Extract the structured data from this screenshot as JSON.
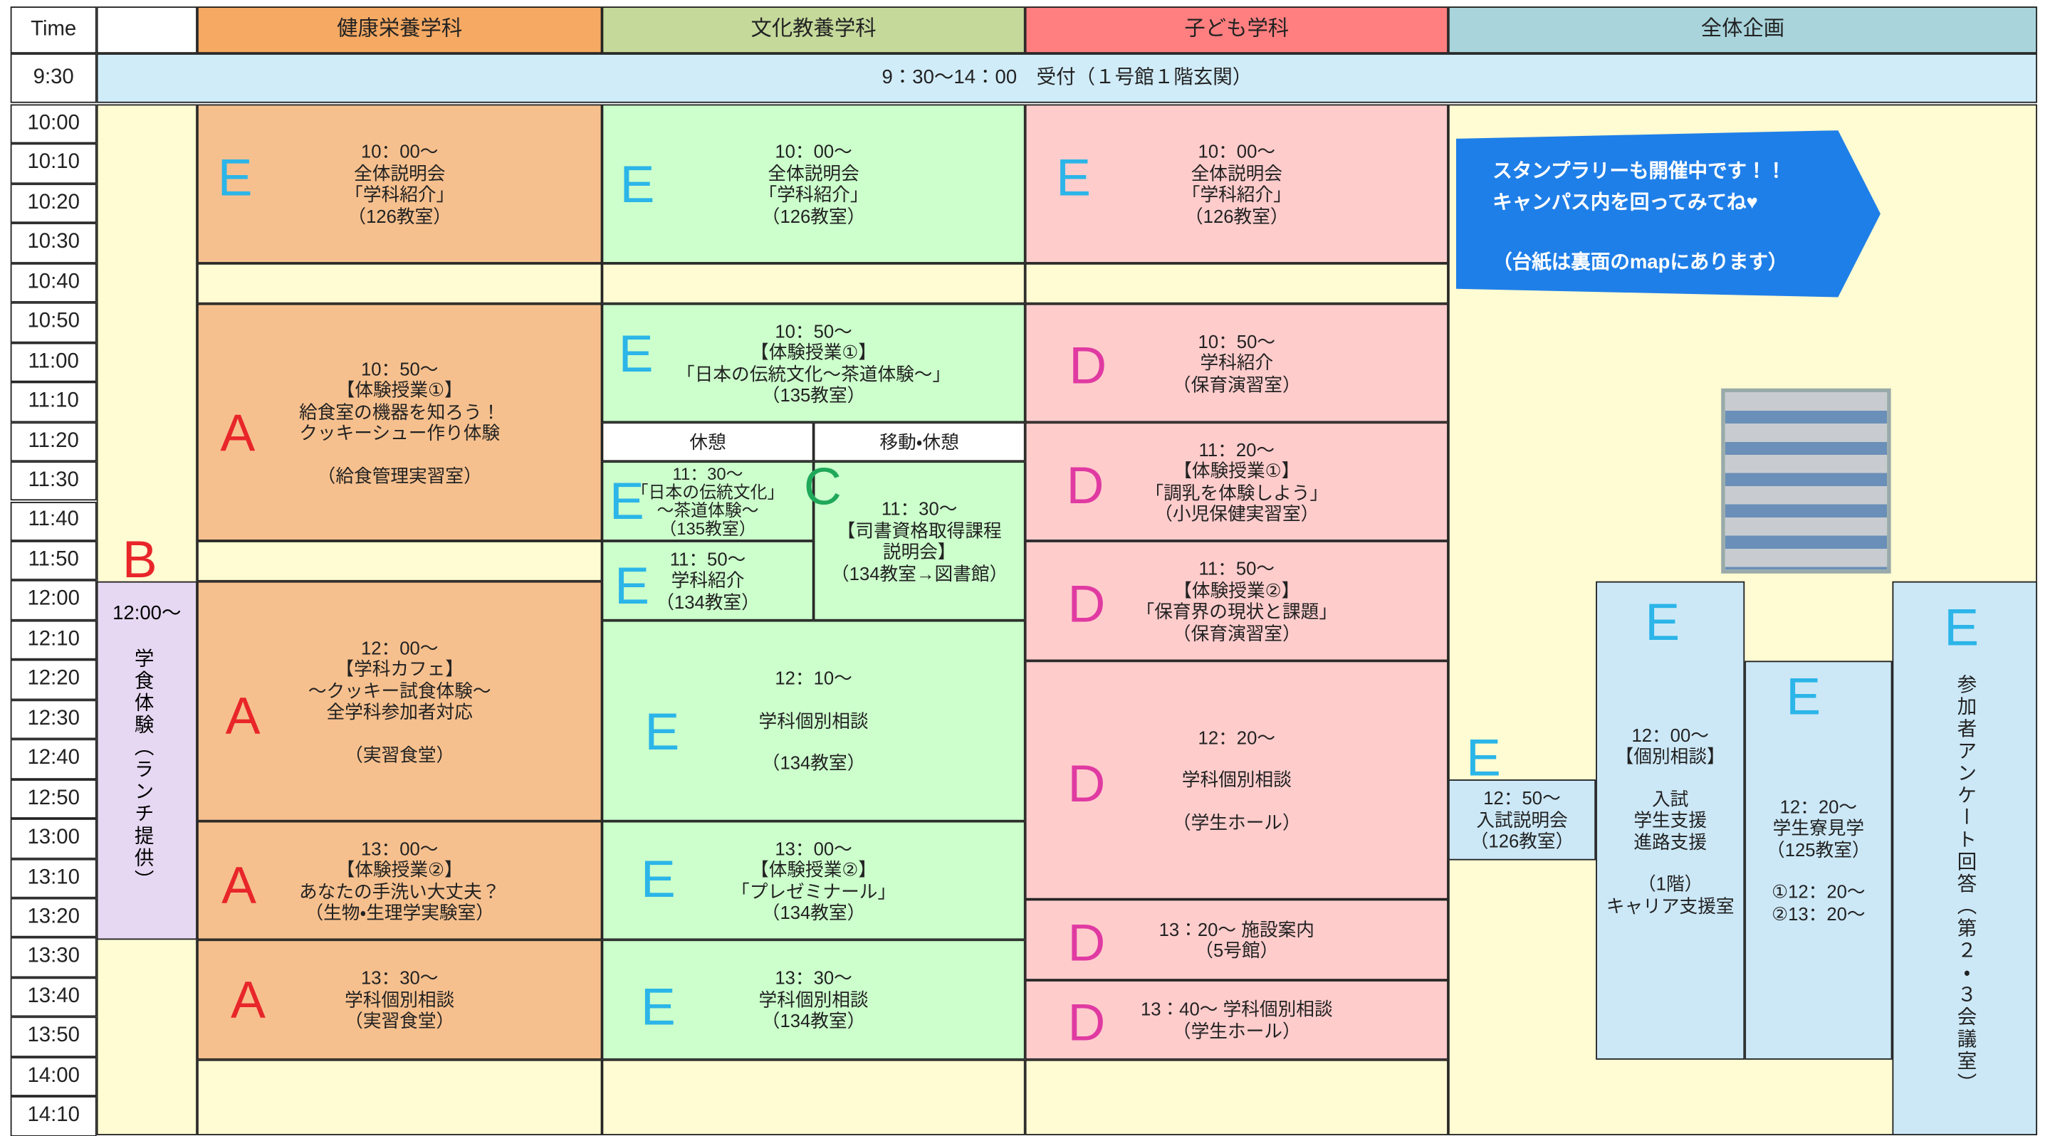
{
  "header": {
    "time": "Time",
    "columns": [
      "健康栄養学科",
      "文化教養学科",
      "子ども学科",
      "全体企画"
    ]
  },
  "times": [
    "9:30",
    "10:00",
    "10:10",
    "10:20",
    "10:30",
    "10:40",
    "10:50",
    "11:00",
    "11:10",
    "11:20",
    "11:30",
    "11:40",
    "11:50",
    "12:00",
    "12:10",
    "12:20",
    "12:30",
    "12:40",
    "12:50",
    "13:00",
    "13:10",
    "13:20",
    "13:30",
    "13:40",
    "13:50",
    "14:00",
    "14:10"
  ],
  "reception": "9：30～14：00　受付（１号館１階玄関）",
  "lunch": {
    "letter": "B",
    "time": "12:00～",
    "label": "学食体験（ランチ提供）"
  },
  "breaks": [
    "休憩",
    "移動・休憩"
  ],
  "notice": [
    "スタンプラリーも開催中です！！",
    "キャンパス内を回ってみてね♥",
    "（台紙は裏面のmapにあります）"
  ],
  "sessions": [
    {
      "letter": "E",
      "lines": [
        "10：00～",
        "全体説明会",
        "「学科紹介」",
        "（126教室）"
      ]
    },
    {
      "letter": "A",
      "lines": [
        "10：50～",
        "【体験授業①】",
        "給食室の機器を知ろう！",
        "クッキーシュー作り体験",
        "（給食管理実習室）"
      ]
    },
    {
      "letter": "A",
      "lines": [
        "12：00～",
        "【学科カフェ】",
        "～クッキー試食体験～",
        "全学科参加者対応",
        "（実習食堂）"
      ]
    },
    {
      "letter": "A",
      "lines": [
        "13：00～",
        "【体験授業②】",
        "あなたの手洗い大丈夫？",
        "（生物・生理学実験室）"
      ]
    },
    {
      "letter": "A",
      "lines": [
        "13：30～",
        "学科個別相談",
        "（実習食堂）"
      ]
    },
    {
      "letter": "E",
      "lines": [
        "10：00～",
        "全体説明会",
        "「学科紹介」",
        "（126教室）"
      ]
    },
    {
      "letter": "E",
      "lines": [
        "10：50～",
        "【体験授業①】",
        "「日本の伝統文化～茶道体験～」",
        "（135教室）"
      ]
    },
    {
      "letter": "E",
      "lines": [
        "11：30～",
        "「日本の伝統文化」",
        "～茶道体験～",
        "（135教室）"
      ]
    },
    {
      "letter": "E",
      "lines": [
        "11：50～",
        "学科紹介",
        "（134教室）"
      ]
    },
    {
      "letter": "C",
      "lines": [
        "11：30～",
        "【司書資格取得課程",
        "説明会】",
        "（134教室→図書館）"
      ]
    },
    {
      "letter": "E",
      "lines": [
        "12：10～",
        "学科個別相談",
        "（134教室）"
      ]
    },
    {
      "letter": "E",
      "lines": [
        "13：00～",
        "【体験授業②】",
        "「プレゼミナール」",
        "（134教室）"
      ]
    },
    {
      "letter": "E",
      "lines": [
        "13：30～",
        "学科個別相談",
        "（134教室）"
      ]
    },
    {
      "letter": "E",
      "lines": [
        "10：00～",
        "全体説明会",
        "「学科紹介」",
        "（126教室）"
      ]
    },
    {
      "letter": "D",
      "lines": [
        "10：50～",
        "学科紹介",
        "（保育演習室）"
      ]
    },
    {
      "letter": "D",
      "lines": [
        "11：20～",
        "【体験授業①】",
        "「調乳を体験しよう」",
        "（小児保健実習室）"
      ]
    },
    {
      "letter": "D",
      "lines": [
        "11：50～",
        "【体験授業②】",
        "「保育界の現状と課題」",
        "（保育演習室）"
      ]
    },
    {
      "letter": "D",
      "lines": [
        "12：20～",
        "学科個別相談",
        "（学生ホール）"
      ]
    },
    {
      "letter": "D",
      "lines": [
        "13：20～ 施設案内",
        "（5号館）"
      ]
    },
    {
      "letter": "D",
      "lines": [
        "13：40～ 学科個別相談",
        "（学生ホール）"
      ]
    },
    {
      "letter": "E",
      "lines": [
        "12：50～",
        "入試説明会",
        "（126教室）"
      ]
    },
    {
      "letter": "E",
      "lines": [
        "12：00～",
        "【個別相談】",
        "入試",
        "学生支援",
        "進路支援",
        "（1階）",
        "キャリア支援室"
      ]
    },
    {
      "letter": "E",
      "lines": [
        "12：20～",
        "学生寮見学",
        "（125教室）",
        "①12：20～",
        "②13：20～"
      ]
    },
    {
      "letter": "E",
      "lines": [
        "参加者アンケート回答（第２・３会議室）"
      ]
    }
  ]
}
